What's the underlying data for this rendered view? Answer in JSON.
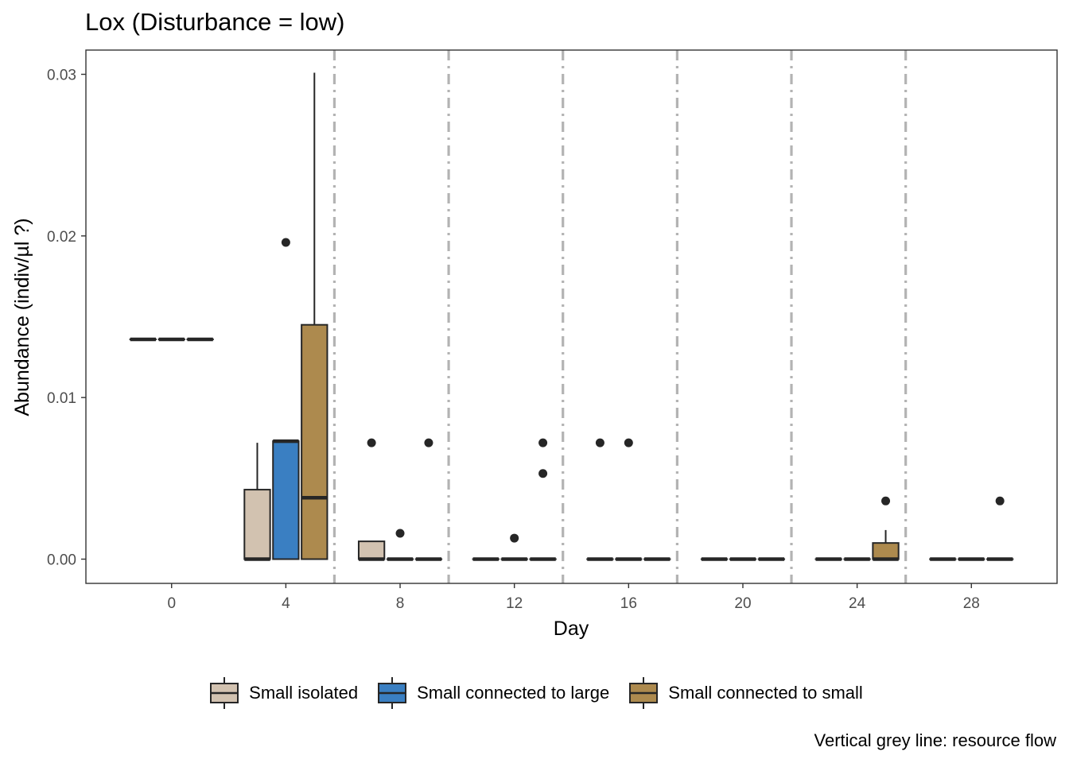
{
  "chart_data": {
    "type": "box",
    "title": "Lox (Disturbance = low)",
    "xlabel": "Day",
    "ylabel": "Abundance (indiv/µl ?)",
    "caption": "Vertical grey line: resource flow",
    "xlim": [
      -3,
      31
    ],
    "ylim": [
      -0.0015,
      0.0315
    ],
    "xticks": [
      0,
      4,
      8,
      12,
      16,
      20,
      24,
      28
    ],
    "yticks": [
      0.0,
      0.01,
      0.02,
      0.03
    ],
    "ytick_labels": [
      "0.00",
      "0.01",
      "0.02",
      "0.03"
    ],
    "legend_position": "bottom",
    "grid": false,
    "resource_flow_days": [
      5.7,
      9.7,
      13.7,
      17.7,
      21.7,
      25.7
    ],
    "series": [
      {
        "name": "Small isolated",
        "color": "#d2c2b0",
        "boxes": [
          {
            "day": -1,
            "lower_whisker": 0.0136,
            "q1": 0.0136,
            "median": 0.0136,
            "q3": 0.0136,
            "upper_whisker": 0.0136,
            "outliers": []
          },
          {
            "day": 3,
            "lower_whisker": 0.0,
            "q1": 0.0,
            "median": 0.0,
            "q3": 0.0043,
            "upper_whisker": 0.0072,
            "outliers": []
          },
          {
            "day": 7,
            "lower_whisker": 0.0,
            "q1": 0.0,
            "median": 0.0,
            "q3": 0.0011,
            "upper_whisker": 0.0011,
            "outliers": [
              0.0072
            ]
          },
          {
            "day": 11,
            "lower_whisker": 0.0,
            "q1": 0.0,
            "median": 0.0,
            "q3": 0.0,
            "upper_whisker": 0.0,
            "outliers": []
          },
          {
            "day": 15,
            "lower_whisker": 0.0,
            "q1": 0.0,
            "median": 0.0,
            "q3": 0.0,
            "upper_whisker": 0.0,
            "outliers": [
              0.0072
            ]
          },
          {
            "day": 19,
            "lower_whisker": 0.0,
            "q1": 0.0,
            "median": 0.0,
            "q3": 0.0,
            "upper_whisker": 0.0,
            "outliers": []
          },
          {
            "day": 23,
            "lower_whisker": 0.0,
            "q1": 0.0,
            "median": 0.0,
            "q3": 0.0,
            "upper_whisker": 0.0,
            "outliers": []
          },
          {
            "day": 27,
            "lower_whisker": 0.0,
            "q1": 0.0,
            "median": 0.0,
            "q3": 0.0,
            "upper_whisker": 0.0,
            "outliers": []
          }
        ]
      },
      {
        "name": "Small connected to large",
        "color": "#3a7fc2",
        "boxes": [
          {
            "day": 0,
            "lower_whisker": 0.0136,
            "q1": 0.0136,
            "median": 0.0136,
            "q3": 0.0136,
            "upper_whisker": 0.0136,
            "outliers": []
          },
          {
            "day": 4,
            "lower_whisker": 0.0,
            "q1": 0.0,
            "median": 0.0073,
            "q3": 0.0073,
            "upper_whisker": 0.0073,
            "outliers": [
              0.0196
            ]
          },
          {
            "day": 8,
            "lower_whisker": 0.0,
            "q1": 0.0,
            "median": 0.0,
            "q3": 0.0,
            "upper_whisker": 0.0,
            "outliers": [
              0.0016
            ]
          },
          {
            "day": 12,
            "lower_whisker": 0.0,
            "q1": 0.0,
            "median": 0.0,
            "q3": 0.0,
            "upper_whisker": 0.0,
            "outliers": [
              0.0013
            ]
          },
          {
            "day": 16,
            "lower_whisker": 0.0,
            "q1": 0.0,
            "median": 0.0,
            "q3": 0.0,
            "upper_whisker": 0.0,
            "outliers": [
              0.0072
            ]
          },
          {
            "day": 20,
            "lower_whisker": 0.0,
            "q1": 0.0,
            "median": 0.0,
            "q3": 0.0,
            "upper_whisker": 0.0,
            "outliers": []
          },
          {
            "day": 24,
            "lower_whisker": 0.0,
            "q1": 0.0,
            "median": 0.0,
            "q3": 0.0,
            "upper_whisker": 0.0,
            "outliers": []
          },
          {
            "day": 28,
            "lower_whisker": 0.0,
            "q1": 0.0,
            "median": 0.0,
            "q3": 0.0,
            "upper_whisker": 0.0,
            "outliers": []
          }
        ]
      },
      {
        "name": "Small connected to small",
        "color": "#ad8a4e",
        "boxes": [
          {
            "day": 1,
            "lower_whisker": 0.0136,
            "q1": 0.0136,
            "median": 0.0136,
            "q3": 0.0136,
            "upper_whisker": 0.0136,
            "outliers": []
          },
          {
            "day": 5,
            "lower_whisker": 0.0,
            "q1": 0.0,
            "median": 0.0038,
            "q3": 0.0145,
            "upper_whisker": 0.0301,
            "outliers": []
          },
          {
            "day": 9,
            "lower_whisker": 0.0,
            "q1": 0.0,
            "median": 0.0,
            "q3": 0.0,
            "upper_whisker": 0.0,
            "outliers": [
              0.0072
            ]
          },
          {
            "day": 13,
            "lower_whisker": 0.0,
            "q1": 0.0,
            "median": 0.0,
            "q3": 0.0,
            "upper_whisker": 0.0,
            "outliers": [
              0.0072,
              0.0053
            ]
          },
          {
            "day": 17,
            "lower_whisker": 0.0,
            "q1": 0.0,
            "median": 0.0,
            "q3": 0.0,
            "upper_whisker": 0.0,
            "outliers": []
          },
          {
            "day": 21,
            "lower_whisker": 0.0,
            "q1": 0.0,
            "median": 0.0,
            "q3": 0.0,
            "upper_whisker": 0.0,
            "outliers": []
          },
          {
            "day": 25,
            "lower_whisker": 0.0,
            "q1": 0.0,
            "median": 0.0,
            "q3": 0.001,
            "upper_whisker": 0.0018,
            "outliers": [
              0.0036
            ]
          },
          {
            "day": 29,
            "lower_whisker": 0.0,
            "q1": 0.0,
            "median": 0.0,
            "q3": 0.0,
            "upper_whisker": 0.0,
            "outliers": [
              0.0036
            ]
          }
        ]
      }
    ]
  }
}
